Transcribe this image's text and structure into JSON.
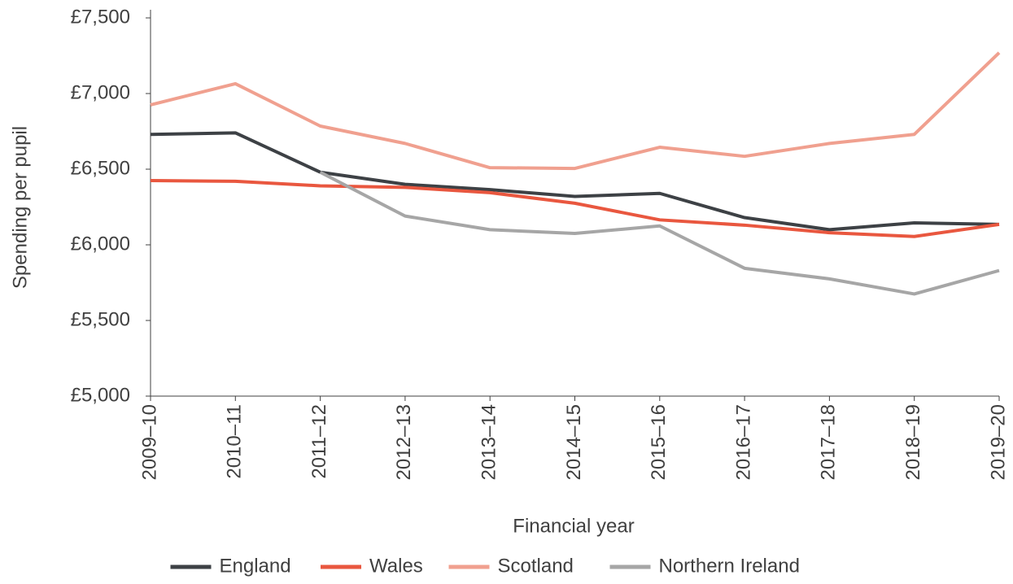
{
  "chart_data": {
    "type": "line",
    "xlabel": "Financial year",
    "ylabel": "Spending per pupil",
    "categories": [
      "2009–10",
      "2010–11",
      "2011–12",
      "2012–13",
      "2013–14",
      "2014–15",
      "2015–16",
      "2016–17",
      "2017–18",
      "2018–19",
      "2019–20"
    ],
    "series": [
      {
        "name": "England",
        "color": "#3d4145",
        "values": [
          6730,
          6740,
          6480,
          6400,
          6365,
          6320,
          6340,
          6180,
          6100,
          6145,
          6135
        ]
      },
      {
        "name": "Wales",
        "color": "#e9573f",
        "values": [
          6425,
          6420,
          6390,
          6380,
          6345,
          6275,
          6165,
          6130,
          6080,
          6055,
          6135
        ]
      },
      {
        "name": "Scotland",
        "color": "#f0a08f",
        "values": [
          6925,
          7065,
          6785,
          6670,
          6510,
          6505,
          6645,
          6585,
          6670,
          6730,
          7270
        ]
      },
      {
        "name": "Northern Ireland",
        "color": "#a6a6a6",
        "values": [
          null,
          null,
          6480,
          6190,
          6100,
          6075,
          6125,
          5845,
          5775,
          5675,
          5830
        ]
      }
    ],
    "ylim": [
      5000,
      7500
    ],
    "yticks": [
      {
        "value": 5000,
        "label": "£5,000"
      },
      {
        "value": 5500,
        "label": "£5,500"
      },
      {
        "value": 6000,
        "label": "£6,000"
      },
      {
        "value": 6500,
        "label": "£6,500"
      },
      {
        "value": 7000,
        "label": "£7,000"
      },
      {
        "value": 7500,
        "label": "£7,500"
      }
    ],
    "grid": false,
    "legend": "bottom"
  }
}
